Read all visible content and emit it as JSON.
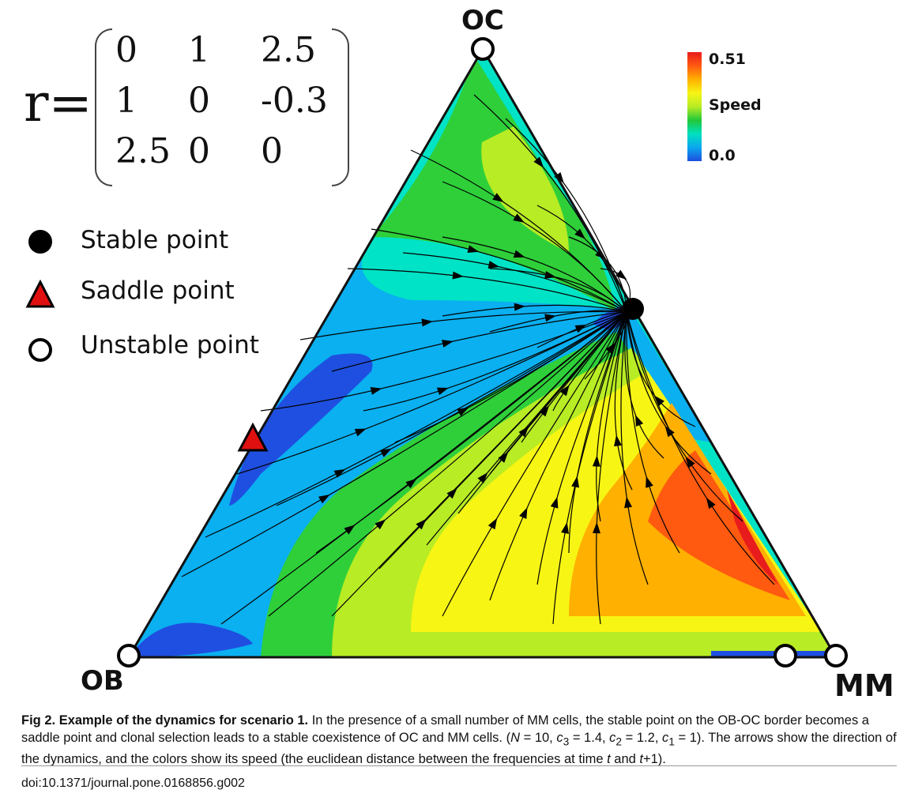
{
  "figure": {
    "vertices": {
      "top": "OC",
      "left": "OB",
      "right": "MM"
    },
    "r_label": "r=",
    "matrix": [
      [
        "0",
        "1",
        "2.5"
      ],
      [
        "1",
        "0",
        "-0.3"
      ],
      [
        "2.5",
        "0",
        "0"
      ]
    ],
    "legend": [
      {
        "label": "Stable point",
        "icon": "filled-circle-icon"
      },
      {
        "label": "Saddle point",
        "icon": "red-triangle-icon"
      },
      {
        "label": "Unstable point",
        "icon": "open-circle-icon"
      }
    ],
    "colorbar": {
      "title": "Speed",
      "max": "0.51",
      "min": "0.0",
      "colors": [
        "#1f4fe0",
        "#0aa6ef",
        "#00e0c0",
        "#22c83a",
        "#b8ec24",
        "#f7f514",
        "#ffb000",
        "#ff5a10",
        "#e81c1c"
      ]
    },
    "colors": {
      "triangle_edge": "#111111",
      "stable": "#000000",
      "saddle": "#e01010",
      "arrow": "#000000"
    }
  },
  "caption": {
    "fig_label": "Fig 2.",
    "title": "Example of the dynamics for scenario 1.",
    "text_1": " In the presence of a small number of MM cells, the stable point on the OB-OC border becomes a saddle point and clonal selection leads to a stable coexistence of OC and MM cells. (",
    "n_sym": "N",
    "text_2": " = 10, ",
    "c3_sym": "c",
    "c3_sub": "3",
    "text_3": " = 1.4, ",
    "c2_sym": "c",
    "c2_sub": "2",
    "text_4": " = 1.2, ",
    "c1_sym": "c",
    "c1_sub": "1",
    "text_5": " = 1). The arrows show the direction of the dynamics, and the colors show its speed (the euclidean distance between the frequencies at time ",
    "t_sym": "t",
    "text_6": " and ",
    "t1_sym": "t",
    "text_7": "+1)."
  },
  "doi": "doi:10.1371/journal.pone.0168856.g002"
}
